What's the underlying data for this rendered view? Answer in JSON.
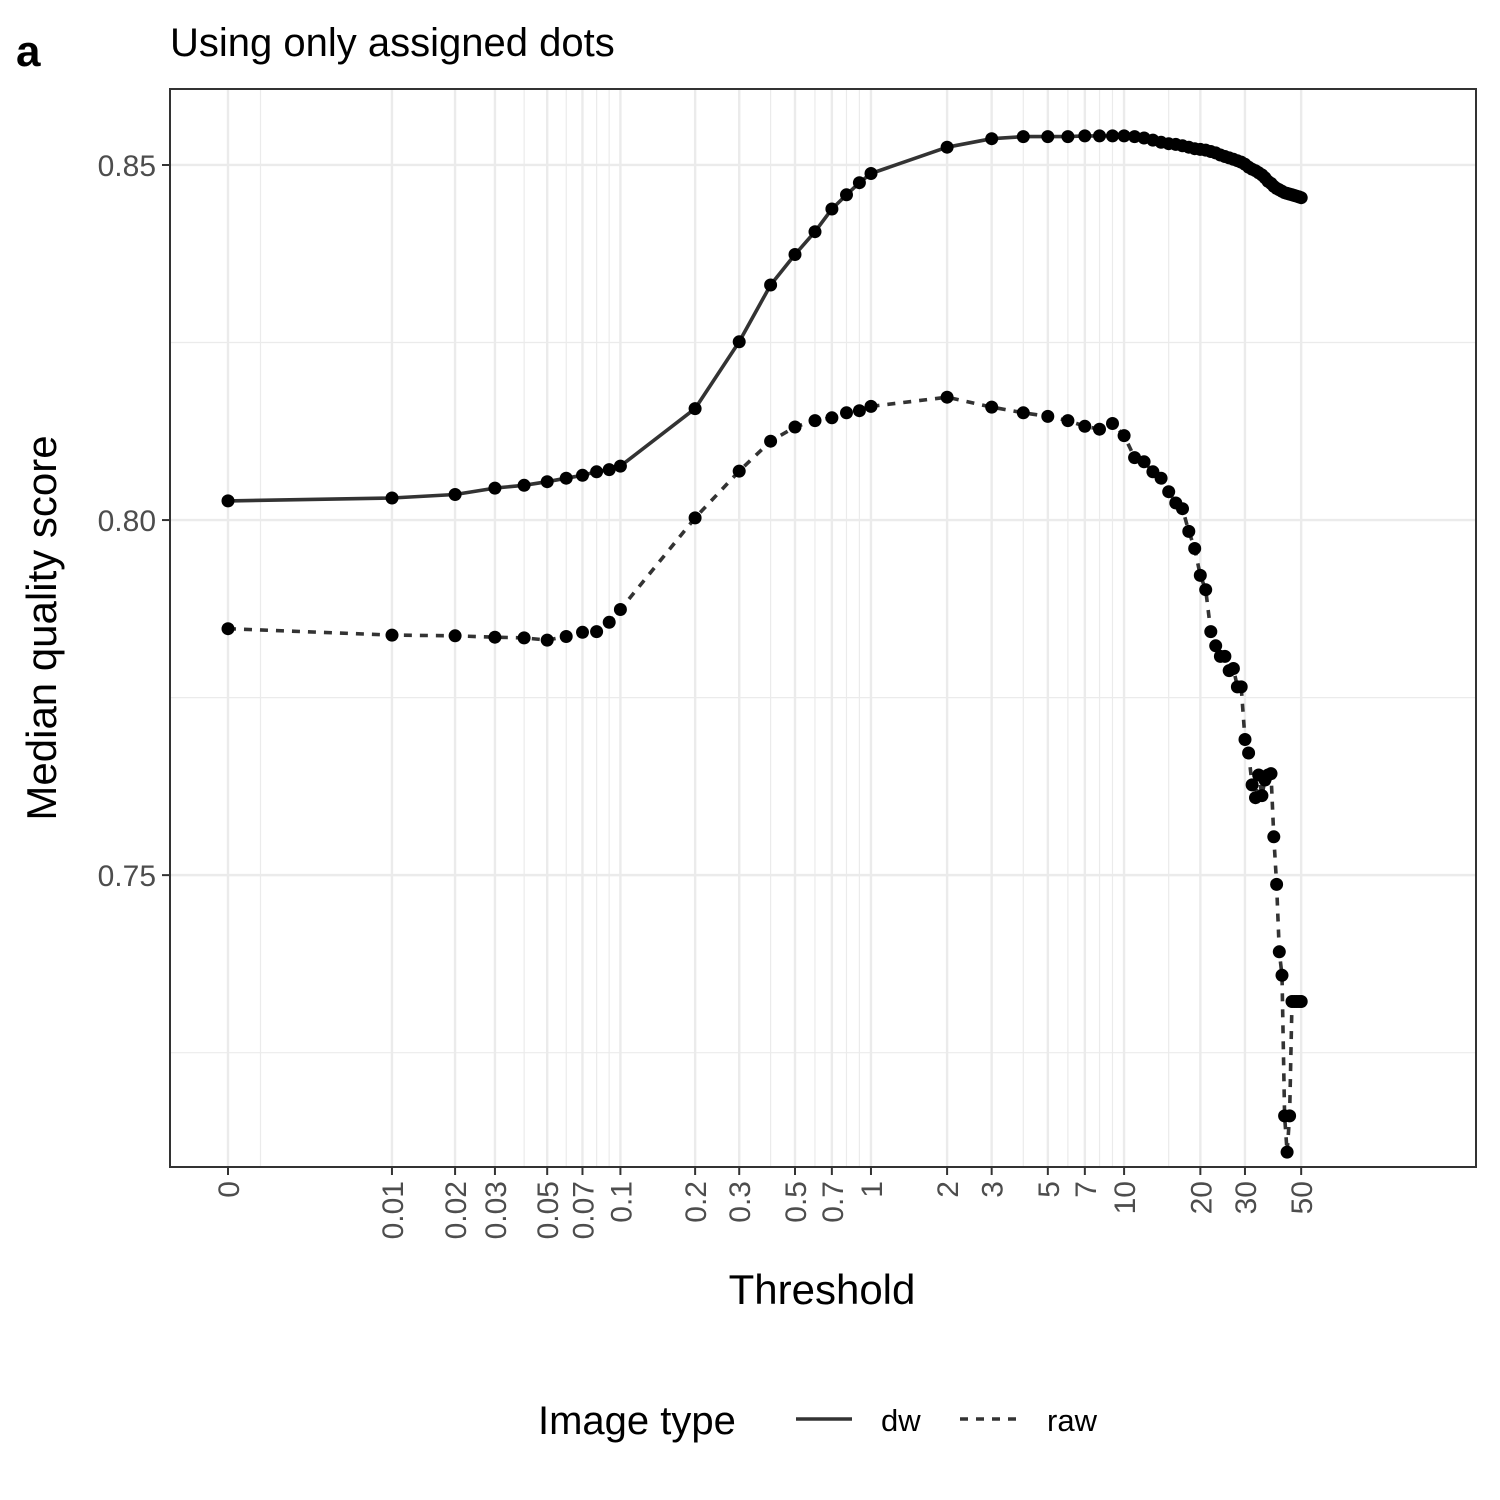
{
  "panel_label": "a",
  "chart_data": {
    "type": "line",
    "title": "Using only assigned dots",
    "xlabel": "Threshold",
    "ylabel": "Median quality score",
    "x_scale": "pseudo-log",
    "x_ticks": [
      0,
      0.01,
      0.02,
      0.03,
      0.05,
      0.07,
      0.1,
      0.2,
      0.3,
      0.5,
      0.7,
      1,
      2,
      3,
      5,
      7,
      10,
      20,
      30,
      50
    ],
    "x_tick_labels": [
      "0",
      "0.01",
      "0.02",
      "0.03",
      "0.05",
      "0.07",
      "0.1",
      "0.2",
      "0.3",
      "0.5",
      "0.7",
      "1",
      "2",
      "3",
      "5",
      "7",
      "10",
      "20",
      "30",
      "50"
    ],
    "x_minor_breaks": [
      0.001,
      0.04,
      0.06,
      0.08,
      0.09,
      0.4,
      0.6,
      0.8,
      0.9,
      4,
      6,
      8,
      9,
      15
    ],
    "y_ticks": [
      0.75,
      0.8,
      0.85
    ],
    "y_tick_labels": [
      "0.75",
      "0.80",
      "0.85"
    ],
    "y_minor_breaks": [
      0.725,
      0.775,
      0.825
    ],
    "ylim": [
      0.7089,
      0.8607
    ],
    "grid": true,
    "legend": {
      "title": "Image type",
      "position": "bottom",
      "entries": [
        {
          "label": "dw",
          "linetype": "solid"
        },
        {
          "label": "raw",
          "linetype": "dashed"
        }
      ]
    },
    "series": [
      {
        "name": "dw",
        "linetype": "solid",
        "color": "#000000",
        "x": [
          0,
          0.01,
          0.02,
          0.03,
          0.04,
          0.05,
          0.06,
          0.07,
          0.08,
          0.09,
          0.1,
          0.2,
          0.3,
          0.4,
          0.5,
          0.6,
          0.7,
          0.8,
          0.9,
          1,
          2,
          3,
          4,
          5,
          6,
          7,
          8,
          9,
          10,
          11,
          12,
          13,
          14,
          15,
          16,
          17,
          18,
          19,
          20,
          21,
          22,
          23,
          24,
          25,
          26,
          27,
          28,
          29,
          30,
          31,
          32,
          33,
          34,
          35,
          36,
          37,
          38,
          39,
          40,
          41,
          42,
          43,
          44,
          45,
          46,
          47,
          48,
          49,
          50
        ],
        "y": [
          0.8027,
          0.8031,
          0.8036,
          0.8045,
          0.8049,
          0.8054,
          0.8059,
          0.8063,
          0.8068,
          0.8071,
          0.8076,
          0.8157,
          0.8251,
          0.8331,
          0.8374,
          0.8406,
          0.8438,
          0.8458,
          0.8475,
          0.8488,
          0.8525,
          0.8537,
          0.854,
          0.854,
          0.854,
          0.8541,
          0.8541,
          0.8541,
          0.8541,
          0.854,
          0.8538,
          0.8535,
          0.8532,
          0.853,
          0.8529,
          0.8527,
          0.8525,
          0.8523,
          0.8522,
          0.8521,
          0.8519,
          0.8517,
          0.8514,
          0.8512,
          0.851,
          0.8508,
          0.8506,
          0.8504,
          0.8501,
          0.8497,
          0.8494,
          0.8492,
          0.8489,
          0.8486,
          0.8482,
          0.8477,
          0.8474,
          0.847,
          0.8467,
          0.8465,
          0.8463,
          0.8461,
          0.846,
          0.8459,
          0.8458,
          0.8457,
          0.8456,
          0.8455,
          0.8454
        ]
      },
      {
        "name": "raw",
        "linetype": "dashed",
        "color": "#000000",
        "x": [
          0,
          0.01,
          0.02,
          0.03,
          0.04,
          0.05,
          0.06,
          0.07,
          0.08,
          0.09,
          0.1,
          0.2,
          0.3,
          0.4,
          0.5,
          0.6,
          0.7,
          0.8,
          0.9,
          1,
          2,
          3,
          4,
          5,
          6,
          7,
          8,
          9,
          10,
          11,
          12,
          13,
          14,
          15,
          16,
          17,
          18,
          19,
          20,
          21,
          22,
          23,
          24,
          25,
          26,
          27,
          28,
          29,
          30,
          31,
          32,
          33,
          34,
          35,
          36,
          37,
          38,
          39,
          40,
          41,
          42,
          43,
          44,
          45,
          46,
          47,
          48,
          49,
          50
        ],
        "y": [
          0.7847,
          0.7838,
          0.7837,
          0.7835,
          0.7834,
          0.7831,
          0.7836,
          0.7842,
          0.7843,
          0.7856,
          0.7874,
          0.8003,
          0.8069,
          0.8111,
          0.8131,
          0.814,
          0.8144,
          0.8151,
          0.8154,
          0.816,
          0.8173,
          0.8159,
          0.8151,
          0.8146,
          0.814,
          0.8132,
          0.8128,
          0.8136,
          0.8119,
          0.8088,
          0.8082,
          0.8068,
          0.8059,
          0.804,
          0.8024,
          0.8016,
          0.7984,
          0.796,
          0.7922,
          0.7902,
          0.7843,
          0.7823,
          0.7808,
          0.7808,
          0.7788,
          0.7791,
          0.7765,
          0.7765,
          0.7691,
          0.7672,
          0.7627,
          0.7609,
          0.7641,
          0.7612,
          0.7634,
          0.7641,
          0.7643,
          0.7554,
          0.7487,
          0.7392,
          0.7359,
          0.7161,
          0.711,
          0.7161,
          0.7322,
          0.7322,
          0.7322,
          0.7322,
          0.7322
        ]
      }
    ]
  }
}
